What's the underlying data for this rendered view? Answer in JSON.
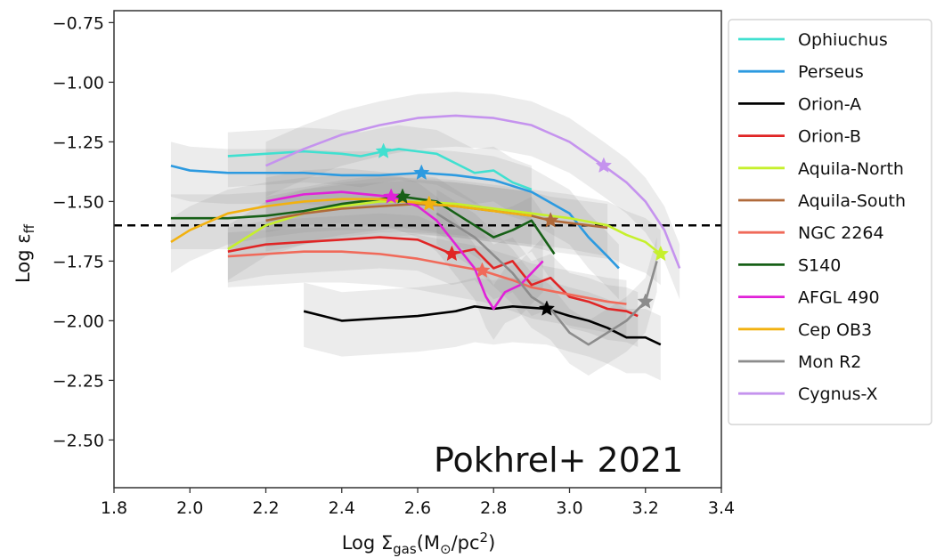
{
  "chart_data": {
    "type": "line",
    "title": "",
    "xlabel": {
      "main": "Log Σ",
      "sub": "gas",
      "paren_open": "(M",
      "sun": "⊙",
      "unit": "/pc",
      "sup": "2",
      "paren_close": ")"
    },
    "ylabel": {
      "main": "Log ε",
      "sub": "ff"
    },
    "xlim": [
      1.8,
      3.4
    ],
    "ylim": [
      -2.7,
      -0.7
    ],
    "x_ticks": [
      1.8,
      2.0,
      2.2,
      2.4,
      2.6,
      2.8,
      3.0,
      3.2,
      3.4
    ],
    "x_tick_labels": [
      "1.8",
      "2.0",
      "2.2",
      "2.4",
      "2.6",
      "2.8",
      "3.0",
      "3.2",
      "3.4"
    ],
    "y_ticks": [
      -0.75,
      -1.0,
      -1.25,
      -1.5,
      -1.75,
      -2.0,
      -2.25,
      -2.5
    ],
    "y_tick_labels": [
      "−0.75",
      "−1.00",
      "−1.25",
      "−1.50",
      "−1.75",
      "−2.00",
      "−2.25",
      "−2.50"
    ],
    "reference_line": {
      "y": -1.6,
      "style": "dashed",
      "color": "#000000"
    },
    "annotation": "Pokhrel+ 2021",
    "legend_position": "outside-right",
    "series": [
      {
        "name": "Ophiuchus",
        "color": "#40e0d0",
        "star": [
          2.51,
          -1.29
        ],
        "x": [
          2.1,
          2.2,
          2.3,
          2.4,
          2.45,
          2.51,
          2.55,
          2.6,
          2.65,
          2.7,
          2.75,
          2.8,
          2.85,
          2.9
        ],
        "y": [
          -1.31,
          -1.3,
          -1.29,
          -1.3,
          -1.31,
          -1.29,
          -1.28,
          -1.29,
          -1.3,
          -1.34,
          -1.38,
          -1.37,
          -1.42,
          -1.45
        ]
      },
      {
        "name": "Perseus",
        "color": "#2c9ae0",
        "star": [
          2.61,
          -1.38
        ],
        "x": [
          1.95,
          2.0,
          2.1,
          2.2,
          2.3,
          2.4,
          2.5,
          2.61,
          2.7,
          2.8,
          2.9,
          3.0,
          3.05,
          3.1,
          3.13
        ],
        "y": [
          -1.35,
          -1.37,
          -1.38,
          -1.38,
          -1.38,
          -1.39,
          -1.39,
          -1.38,
          -1.39,
          -1.41,
          -1.46,
          -1.55,
          -1.65,
          -1.73,
          -1.78
        ]
      },
      {
        "name": "Orion-A",
        "color": "#000000",
        "star": [
          2.94,
          -1.95
        ],
        "x": [
          2.3,
          2.35,
          2.4,
          2.5,
          2.6,
          2.7,
          2.75,
          2.8,
          2.85,
          2.94,
          3.0,
          3.05,
          3.1,
          3.15,
          3.2,
          3.24
        ],
        "y": [
          -1.96,
          -1.98,
          -2.0,
          -1.99,
          -1.98,
          -1.96,
          -1.94,
          -1.95,
          -1.94,
          -1.95,
          -1.98,
          -2.0,
          -2.03,
          -2.07,
          -2.07,
          -2.1
        ]
      },
      {
        "name": "Orion-B",
        "color": "#e02525",
        "star": [
          2.69,
          -1.72
        ],
        "x": [
          2.1,
          2.2,
          2.3,
          2.4,
          2.5,
          2.6,
          2.69,
          2.75,
          2.8,
          2.85,
          2.9,
          2.95,
          3.0,
          3.05,
          3.1,
          3.15,
          3.18
        ],
        "y": [
          -1.71,
          -1.68,
          -1.67,
          -1.66,
          -1.65,
          -1.66,
          -1.72,
          -1.7,
          -1.78,
          -1.75,
          -1.85,
          -1.82,
          -1.9,
          -1.92,
          -1.95,
          -1.96,
          -1.98
        ]
      },
      {
        "name": "Aquila-North",
        "color": "#c6f02c",
        "star": [
          3.24,
          -1.72
        ],
        "x": [
          2.1,
          2.2,
          2.3,
          2.4,
          2.5,
          2.6,
          2.7,
          2.8,
          2.9,
          3.0,
          3.1,
          3.15,
          3.2,
          3.24
        ],
        "y": [
          -1.7,
          -1.6,
          -1.55,
          -1.52,
          -1.5,
          -1.5,
          -1.51,
          -1.53,
          -1.55,
          -1.57,
          -1.6,
          -1.64,
          -1.67,
          -1.72
        ]
      },
      {
        "name": "Aquila-South",
        "color": "#b06a3a",
        "star": [
          2.95,
          -1.58
        ],
        "x": [
          2.2,
          2.3,
          2.4,
          2.5,
          2.6,
          2.7,
          2.8,
          2.9,
          2.95,
          3.0,
          3.05,
          3.1
        ],
        "y": [
          -1.58,
          -1.55,
          -1.53,
          -1.52,
          -1.51,
          -1.52,
          -1.54,
          -1.56,
          -1.58,
          -1.59,
          -1.6,
          -1.61
        ]
      },
      {
        "name": "NGC 2264",
        "color": "#f06a5a",
        "star": [
          2.77,
          -1.79
        ],
        "x": [
          2.1,
          2.2,
          2.3,
          2.4,
          2.5,
          2.6,
          2.7,
          2.77,
          2.85,
          2.9,
          3.0,
          3.1,
          3.15
        ],
        "y": [
          -1.73,
          -1.72,
          -1.71,
          -1.71,
          -1.72,
          -1.74,
          -1.77,
          -1.79,
          -1.83,
          -1.86,
          -1.89,
          -1.92,
          -1.93
        ]
      },
      {
        "name": "S140",
        "color": "#176017",
        "star": [
          2.56,
          -1.48
        ],
        "x": [
          1.95,
          2.1,
          2.2,
          2.3,
          2.4,
          2.5,
          2.56,
          2.65,
          2.7,
          2.75,
          2.8,
          2.85,
          2.9,
          2.93,
          2.96
        ],
        "y": [
          -1.57,
          -1.57,
          -1.56,
          -1.54,
          -1.51,
          -1.49,
          -1.48,
          -1.5,
          -1.55,
          -1.6,
          -1.65,
          -1.62,
          -1.58,
          -1.65,
          -1.72
        ]
      },
      {
        "name": "AFGL 490",
        "color": "#e022d8",
        "star": [
          2.53,
          -1.48
        ],
        "x": [
          2.2,
          2.3,
          2.4,
          2.53,
          2.6,
          2.65,
          2.7,
          2.75,
          2.78,
          2.8,
          2.83,
          2.87,
          2.9,
          2.93
        ],
        "y": [
          -1.5,
          -1.47,
          -1.46,
          -1.48,
          -1.52,
          -1.58,
          -1.68,
          -1.78,
          -1.9,
          -1.95,
          -1.88,
          -1.85,
          -1.8,
          -1.75
        ]
      },
      {
        "name": "Cep OB3",
        "color": "#f2b10f",
        "star": [
          2.63,
          -1.51
        ],
        "x": [
          1.95,
          2.0,
          2.1,
          2.2,
          2.3,
          2.4,
          2.5,
          2.63,
          2.7,
          2.8,
          2.9
        ],
        "y": [
          -1.67,
          -1.62,
          -1.55,
          -1.52,
          -1.5,
          -1.49,
          -1.49,
          -1.51,
          -1.52,
          -1.54,
          -1.56
        ]
      },
      {
        "name": "Mon R2",
        "color": "#8c8c8c",
        "star": [
          3.2,
          -1.92
        ],
        "x": [
          2.65,
          2.75,
          2.85,
          2.9,
          2.95,
          3.0,
          3.05,
          3.1,
          3.15,
          3.2,
          3.23
        ],
        "y": [
          -1.55,
          -1.65,
          -1.8,
          -1.9,
          -1.95,
          -2.05,
          -2.1,
          -2.05,
          -2.0,
          -1.92,
          -1.75
        ]
      },
      {
        "name": "Cygnus-X",
        "color": "#c593ee",
        "star": [
          3.09,
          -1.35
        ],
        "x": [
          2.2,
          2.3,
          2.4,
          2.5,
          2.6,
          2.7,
          2.8,
          2.9,
          3.0,
          3.09,
          3.15,
          3.2,
          3.25,
          3.29
        ],
        "y": [
          -1.35,
          -1.28,
          -1.22,
          -1.18,
          -1.15,
          -1.14,
          -1.15,
          -1.18,
          -1.25,
          -1.35,
          -1.42,
          -1.5,
          -1.62,
          -1.78
        ]
      }
    ]
  }
}
